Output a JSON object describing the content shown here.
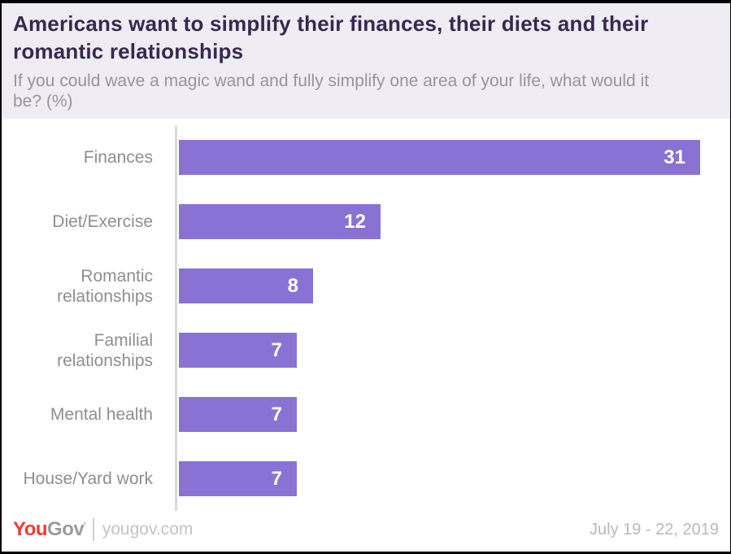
{
  "chart_data": {
    "type": "bar",
    "orientation": "horizontal",
    "title": "Americans want to simplify their finances, their diets and their romantic relationships",
    "subtitle": "If you could wave a magic wand and fully simplify one area of your life, what would it be? (%)",
    "categories": [
      "Finances",
      "Diet/Exercise",
      "Romantic relationships",
      "Familial relationships",
      "Mental health",
      "House/Yard work"
    ],
    "values": [
      31,
      12,
      8,
      7,
      7,
      7
    ],
    "unit": "%",
    "xlim": [
      0,
      31
    ],
    "grid": false,
    "legend": "none",
    "bar_color": "#8a72d4",
    "value_label_color": "#ffffff",
    "value_labels_inside_bar": true
  },
  "footer": {
    "logo_you": "You",
    "logo_gov": "Gov",
    "logo_tm": "'",
    "site": "yougov.com",
    "date_range": "July 19 - 22, 2019"
  },
  "colors": {
    "header_bg": "#efecf4",
    "title": "#38294f",
    "subtitle": "#97959c",
    "bar": "#8a72d4",
    "category_label": "#8e8e8e",
    "axis_line": "#d9d9d9",
    "logo_red": "#ee3b33",
    "logo_gray": "#9b9b9b",
    "date": "#b9b9b9"
  }
}
